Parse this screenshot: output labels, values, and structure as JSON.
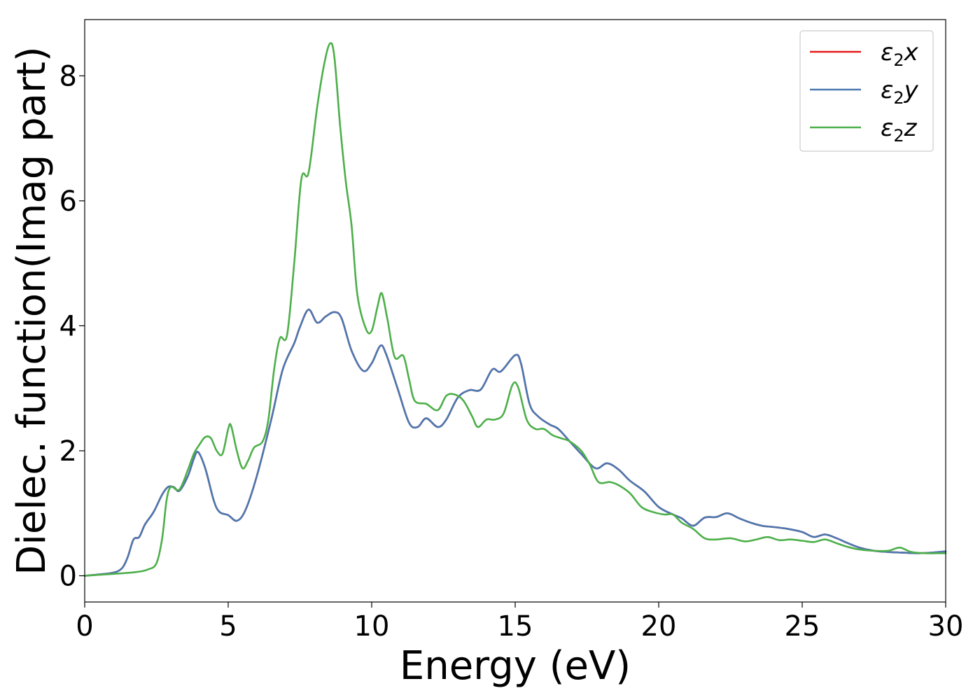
{
  "chart_data": {
    "type": "line",
    "xlabel": "Energy (eV)",
    "ylabel": "Dielec. function(Imag part)",
    "xlim": [
      0,
      30
    ],
    "ylim": [
      -0.42,
      8.9
    ],
    "xticks": [
      0,
      5,
      10,
      15,
      20,
      25,
      30
    ],
    "yticks": [
      0,
      2,
      4,
      6,
      8
    ],
    "grid": false,
    "legend_position": "top-right",
    "series": [
      {
        "name": "ε₂x",
        "legend_base": "ε",
        "legend_sub": "2",
        "legend_var": "x",
        "color": "#e41a1c",
        "points": [
          [
            0,
            0
          ],
          [
            0.5,
            0.02
          ],
          [
            1,
            0.05
          ],
          [
            1.3,
            0.12
          ],
          [
            1.5,
            0.3
          ],
          [
            1.7,
            0.58
          ],
          [
            1.9,
            0.62
          ],
          [
            2.1,
            0.82
          ],
          [
            2.4,
            1.02
          ],
          [
            2.7,
            1.3
          ],
          [
            2.9,
            1.42
          ],
          [
            3.1,
            1.42
          ],
          [
            3.3,
            1.36
          ],
          [
            3.6,
            1.6
          ],
          [
            3.8,
            1.87
          ],
          [
            3.95,
            1.98
          ],
          [
            4.2,
            1.72
          ],
          [
            4.5,
            1.2
          ],
          [
            4.7,
            1.02
          ],
          [
            5.0,
            0.97
          ],
          [
            5.3,
            0.88
          ],
          [
            5.6,
            1.05
          ],
          [
            6.0,
            1.6
          ],
          [
            6.5,
            2.5
          ],
          [
            6.9,
            3.3
          ],
          [
            7.3,
            3.72
          ],
          [
            7.5,
            3.98
          ],
          [
            7.8,
            4.26
          ],
          [
            8.1,
            4.05
          ],
          [
            8.4,
            4.15
          ],
          [
            8.7,
            4.22
          ],
          [
            8.95,
            4.12
          ],
          [
            9.3,
            3.6
          ],
          [
            9.7,
            3.28
          ],
          [
            10.0,
            3.4
          ],
          [
            10.3,
            3.68
          ],
          [
            10.5,
            3.55
          ],
          [
            10.9,
            3.0
          ],
          [
            11.3,
            2.45
          ],
          [
            11.6,
            2.38
          ],
          [
            11.9,
            2.52
          ],
          [
            12.3,
            2.38
          ],
          [
            12.6,
            2.5
          ],
          [
            13.0,
            2.85
          ],
          [
            13.4,
            2.97
          ],
          [
            13.8,
            2.98
          ],
          [
            14.2,
            3.3
          ],
          [
            14.5,
            3.27
          ],
          [
            15.0,
            3.53
          ],
          [
            15.2,
            3.4
          ],
          [
            15.5,
            2.75
          ],
          [
            15.8,
            2.55
          ],
          [
            16.2,
            2.42
          ],
          [
            16.5,
            2.35
          ],
          [
            16.9,
            2.15
          ],
          [
            17.3,
            1.95
          ],
          [
            17.8,
            1.72
          ],
          [
            18.2,
            1.8
          ],
          [
            18.6,
            1.7
          ],
          [
            19.0,
            1.52
          ],
          [
            19.5,
            1.35
          ],
          [
            20.0,
            1.1
          ],
          [
            20.5,
            0.98
          ],
          [
            20.8,
            0.92
          ],
          [
            21.2,
            0.8
          ],
          [
            21.6,
            0.93
          ],
          [
            22.0,
            0.94
          ],
          [
            22.4,
            1.0
          ],
          [
            22.8,
            0.92
          ],
          [
            23.2,
            0.85
          ],
          [
            23.6,
            0.8
          ],
          [
            24.0,
            0.78
          ],
          [
            24.5,
            0.75
          ],
          [
            25.0,
            0.7
          ],
          [
            25.4,
            0.62
          ],
          [
            25.8,
            0.66
          ],
          [
            26.2,
            0.6
          ],
          [
            26.6,
            0.52
          ],
          [
            27.0,
            0.45
          ],
          [
            27.5,
            0.4
          ],
          [
            28.0,
            0.38
          ],
          [
            28.5,
            0.37
          ],
          [
            29.0,
            0.36
          ],
          [
            29.5,
            0.37
          ],
          [
            30.0,
            0.39
          ]
        ]
      },
      {
        "name": "ε₂y",
        "legend_base": "ε",
        "legend_sub": "2",
        "legend_var": "y",
        "color": "#4a78b0",
        "points": [
          [
            0,
            0
          ],
          [
            0.5,
            0.02
          ],
          [
            1,
            0.05
          ],
          [
            1.3,
            0.12
          ],
          [
            1.5,
            0.3
          ],
          [
            1.7,
            0.58
          ],
          [
            1.9,
            0.62
          ],
          [
            2.1,
            0.82
          ],
          [
            2.4,
            1.02
          ],
          [
            2.7,
            1.3
          ],
          [
            2.9,
            1.42
          ],
          [
            3.1,
            1.42
          ],
          [
            3.3,
            1.36
          ],
          [
            3.6,
            1.6
          ],
          [
            3.8,
            1.87
          ],
          [
            3.95,
            1.98
          ],
          [
            4.2,
            1.72
          ],
          [
            4.5,
            1.2
          ],
          [
            4.7,
            1.02
          ],
          [
            5.0,
            0.97
          ],
          [
            5.3,
            0.88
          ],
          [
            5.6,
            1.05
          ],
          [
            6.0,
            1.6
          ],
          [
            6.5,
            2.5
          ],
          [
            6.9,
            3.3
          ],
          [
            7.3,
            3.72
          ],
          [
            7.5,
            3.98
          ],
          [
            7.8,
            4.26
          ],
          [
            8.1,
            4.05
          ],
          [
            8.4,
            4.15
          ],
          [
            8.7,
            4.22
          ],
          [
            8.95,
            4.12
          ],
          [
            9.3,
            3.6
          ],
          [
            9.7,
            3.28
          ],
          [
            10.0,
            3.4
          ],
          [
            10.3,
            3.68
          ],
          [
            10.5,
            3.55
          ],
          [
            10.9,
            3.0
          ],
          [
            11.3,
            2.45
          ],
          [
            11.6,
            2.38
          ],
          [
            11.9,
            2.52
          ],
          [
            12.3,
            2.38
          ],
          [
            12.6,
            2.5
          ],
          [
            13.0,
            2.85
          ],
          [
            13.4,
            2.97
          ],
          [
            13.8,
            2.98
          ],
          [
            14.2,
            3.3
          ],
          [
            14.5,
            3.27
          ],
          [
            15.0,
            3.53
          ],
          [
            15.2,
            3.4
          ],
          [
            15.5,
            2.75
          ],
          [
            15.8,
            2.55
          ],
          [
            16.2,
            2.42
          ],
          [
            16.5,
            2.35
          ],
          [
            16.9,
            2.15
          ],
          [
            17.3,
            1.95
          ],
          [
            17.8,
            1.72
          ],
          [
            18.2,
            1.8
          ],
          [
            18.6,
            1.7
          ],
          [
            19.0,
            1.52
          ],
          [
            19.5,
            1.35
          ],
          [
            20.0,
            1.1
          ],
          [
            20.5,
            0.98
          ],
          [
            20.8,
            0.92
          ],
          [
            21.2,
            0.8
          ],
          [
            21.6,
            0.93
          ],
          [
            22.0,
            0.94
          ],
          [
            22.4,
            1.0
          ],
          [
            22.8,
            0.92
          ],
          [
            23.2,
            0.85
          ],
          [
            23.6,
            0.8
          ],
          [
            24.0,
            0.78
          ],
          [
            24.5,
            0.75
          ],
          [
            25.0,
            0.7
          ],
          [
            25.4,
            0.62
          ],
          [
            25.8,
            0.66
          ],
          [
            26.2,
            0.6
          ],
          [
            26.6,
            0.52
          ],
          [
            27.0,
            0.45
          ],
          [
            27.5,
            0.4
          ],
          [
            28.0,
            0.38
          ],
          [
            28.5,
            0.37
          ],
          [
            29.0,
            0.36
          ],
          [
            29.5,
            0.37
          ],
          [
            30.0,
            0.39
          ]
        ]
      },
      {
        "name": "ε₂z",
        "legend_base": "ε",
        "legend_sub": "2",
        "legend_var": "z",
        "color": "#4daf4a",
        "points": [
          [
            0,
            0
          ],
          [
            1,
            0.03
          ],
          [
            1.8,
            0.06
          ],
          [
            2.2,
            0.1
          ],
          [
            2.5,
            0.2
          ],
          [
            2.7,
            0.6
          ],
          [
            2.85,
            1.2
          ],
          [
            3.0,
            1.42
          ],
          [
            3.3,
            1.38
          ],
          [
            3.6,
            1.7
          ],
          [
            3.8,
            1.95
          ],
          [
            4.0,
            2.1
          ],
          [
            4.2,
            2.22
          ],
          [
            4.4,
            2.2
          ],
          [
            4.6,
            2.0
          ],
          [
            4.8,
            1.95
          ],
          [
            5.0,
            2.35
          ],
          [
            5.1,
            2.4
          ],
          [
            5.3,
            2.0
          ],
          [
            5.5,
            1.72
          ],
          [
            5.7,
            1.85
          ],
          [
            5.9,
            2.05
          ],
          [
            6.2,
            2.15
          ],
          [
            6.4,
            2.5
          ],
          [
            6.6,
            3.3
          ],
          [
            6.8,
            3.8
          ],
          [
            7.05,
            3.85
          ],
          [
            7.3,
            5.0
          ],
          [
            7.55,
            6.35
          ],
          [
            7.8,
            6.45
          ],
          [
            8.1,
            7.5
          ],
          [
            8.35,
            8.2
          ],
          [
            8.55,
            8.52
          ],
          [
            8.7,
            8.3
          ],
          [
            8.9,
            7.2
          ],
          [
            9.1,
            6.3
          ],
          [
            9.3,
            5.6
          ],
          [
            9.5,
            4.5
          ],
          [
            9.8,
            3.95
          ],
          [
            10.0,
            3.92
          ],
          [
            10.2,
            4.3
          ],
          [
            10.35,
            4.52
          ],
          [
            10.55,
            4.1
          ],
          [
            10.8,
            3.5
          ],
          [
            11.1,
            3.52
          ],
          [
            11.3,
            3.15
          ],
          [
            11.5,
            2.8
          ],
          [
            11.9,
            2.75
          ],
          [
            12.3,
            2.65
          ],
          [
            12.6,
            2.88
          ],
          [
            12.9,
            2.9
          ],
          [
            13.2,
            2.8
          ],
          [
            13.5,
            2.55
          ],
          [
            13.7,
            2.38
          ],
          [
            14.0,
            2.5
          ],
          [
            14.3,
            2.5
          ],
          [
            14.6,
            2.6
          ],
          [
            14.9,
            3.05
          ],
          [
            15.1,
            3.02
          ],
          [
            15.4,
            2.5
          ],
          [
            15.7,
            2.35
          ],
          [
            16.0,
            2.35
          ],
          [
            16.3,
            2.25
          ],
          [
            16.6,
            2.2
          ],
          [
            16.9,
            2.15
          ],
          [
            17.3,
            2.0
          ],
          [
            17.6,
            1.78
          ],
          [
            17.9,
            1.5
          ],
          [
            18.3,
            1.5
          ],
          [
            18.6,
            1.45
          ],
          [
            19.0,
            1.32
          ],
          [
            19.4,
            1.1
          ],
          [
            19.8,
            1.02
          ],
          [
            20.2,
            0.98
          ],
          [
            20.5,
            0.98
          ],
          [
            20.8,
            0.85
          ],
          [
            21.2,
            0.75
          ],
          [
            21.6,
            0.6
          ],
          [
            22.0,
            0.58
          ],
          [
            22.5,
            0.6
          ],
          [
            23.0,
            0.55
          ],
          [
            23.4,
            0.58
          ],
          [
            23.8,
            0.62
          ],
          [
            24.2,
            0.57
          ],
          [
            24.6,
            0.58
          ],
          [
            25.0,
            0.56
          ],
          [
            25.4,
            0.54
          ],
          [
            25.8,
            0.58
          ],
          [
            26.2,
            0.52
          ],
          [
            26.6,
            0.46
          ],
          [
            27.0,
            0.42
          ],
          [
            27.5,
            0.4
          ],
          [
            28.0,
            0.4
          ],
          [
            28.4,
            0.45
          ],
          [
            28.8,
            0.38
          ],
          [
            29.3,
            0.36
          ],
          [
            29.7,
            0.36
          ],
          [
            30.0,
            0.36
          ]
        ]
      }
    ]
  }
}
